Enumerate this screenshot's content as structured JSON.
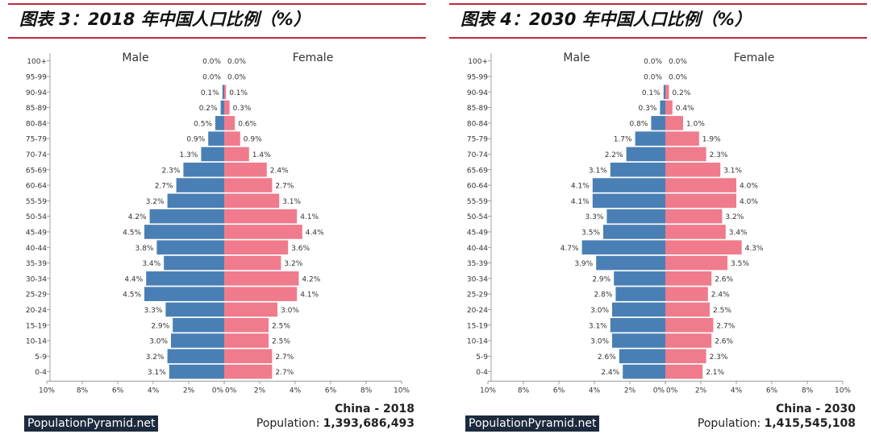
{
  "charts": [
    {
      "title": "图表 3：2018 年中国人口比例（%）",
      "brand": "PopulationPyramid.net",
      "country_year": "China - 2018",
      "population_label": "Population:",
      "population_value": "1,393,686,493"
    },
    {
      "title": "图表 4：2030 年中国人口比例（%）",
      "brand": "PopulationPyramid.net",
      "country_year": "China - 2030",
      "population_label": "Population:",
      "population_value": "1,415,545,108"
    }
  ],
  "colors": {
    "male": "#4a7fb5",
    "female": "#ef7b8c",
    "title_rule": "#c0293b",
    "brand_bg": "#1c2a3d"
  },
  "chart_data": [
    {
      "type": "bar",
      "orientation": "horizontal-pyramid",
      "title": "图表 3：2018 年中国人口比例（%）",
      "male_label": "Male",
      "female_label": "Female",
      "categories": [
        "100+",
        "95-99",
        "90-94",
        "85-89",
        "80-84",
        "75-79",
        "70-74",
        "65-69",
        "60-64",
        "55-59",
        "50-54",
        "45-49",
        "40-44",
        "35-39",
        "30-34",
        "25-29",
        "20-24",
        "15-19",
        "10-14",
        "5-9",
        "0-4"
      ],
      "series": [
        {
          "name": "Male",
          "values": [
            0.0,
            0.0,
            0.1,
            0.2,
            0.5,
            0.9,
            1.3,
            2.3,
            2.7,
            3.2,
            4.2,
            4.5,
            3.8,
            3.4,
            4.4,
            4.5,
            3.3,
            2.9,
            3.0,
            3.2,
            3.1
          ]
        },
        {
          "name": "Female",
          "values": [
            0.0,
            0.0,
            0.1,
            0.3,
            0.6,
            0.9,
            1.4,
            2.4,
            2.7,
            3.1,
            4.1,
            4.4,
            3.6,
            3.2,
            4.2,
            4.1,
            3.0,
            2.5,
            2.5,
            2.7,
            2.7
          ]
        }
      ],
      "xticks": [
        "10%",
        "8%",
        "6%",
        "4%",
        "2%",
        "0%",
        "0%",
        "2%",
        "4%",
        "6%",
        "8%",
        "10%"
      ],
      "xlim": [
        -10,
        10
      ]
    },
    {
      "type": "bar",
      "orientation": "horizontal-pyramid",
      "title": "图表 4：2030 年中国人口比例（%）",
      "male_label": "Male",
      "female_label": "Female",
      "categories": [
        "100+",
        "95-99",
        "90-94",
        "85-89",
        "80-84",
        "75-79",
        "70-74",
        "65-69",
        "60-64",
        "55-59",
        "50-54",
        "45-49",
        "40-44",
        "35-39",
        "30-34",
        "25-29",
        "20-24",
        "15-19",
        "10-14",
        "5-9",
        "0-4"
      ],
      "series": [
        {
          "name": "Male",
          "values": [
            0.0,
            0.0,
            0.1,
            0.3,
            0.8,
            1.7,
            2.2,
            3.1,
            4.1,
            4.1,
            3.3,
            3.5,
            4.7,
            3.9,
            2.9,
            2.8,
            3.0,
            3.1,
            3.0,
            2.6,
            2.4
          ]
        },
        {
          "name": "Female",
          "values": [
            0.0,
            0.0,
            0.2,
            0.4,
            1.0,
            1.9,
            2.3,
            3.1,
            4.0,
            4.0,
            3.2,
            3.4,
            4.3,
            3.5,
            2.6,
            2.4,
            2.5,
            2.7,
            2.6,
            2.3,
            2.1
          ]
        }
      ],
      "xticks": [
        "10%",
        "8%",
        "6%",
        "4%",
        "2%",
        "0%",
        "0%",
        "2%",
        "4%",
        "6%",
        "8%",
        "10%"
      ],
      "xlim": [
        -10,
        10
      ]
    }
  ]
}
